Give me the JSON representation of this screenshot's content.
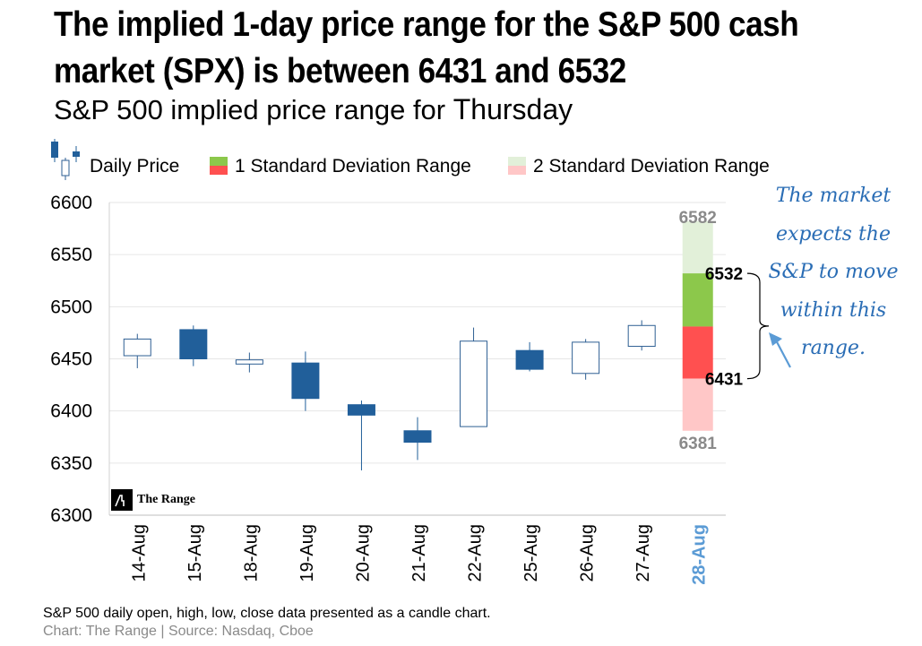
{
  "headline": "The implied 1-day price range for the S&P 500 cash market (SPX) is between 6431 and 6532",
  "subtitle": {
    "prefix": "S&P 500 implied price range for",
    "day": "Thursday"
  },
  "annotation": "The market expects the S&P to move within this range.",
  "logo": {
    "text": "The Range"
  },
  "footnote": "S&P 500 daily open, high, low, close data presented as a candle chart.",
  "source": "Chart: The Range | Source: Nasdaq, Cboe",
  "colors": {
    "up_candle_fill": "#ffffff",
    "up_candle_stroke": "#2e5f93",
    "down_candle": "#215f9a",
    "sd1_upper": "#8cc84b",
    "sd1_lower": "#ff5050",
    "sd2_upper": "#e2f0d9",
    "sd2_lower": "#ffc7c7",
    "highlight_date": "#5b9bd5",
    "range_label_gray": "#8a8a8a"
  },
  "chart_data": {
    "type": "candlestick",
    "title": "S&P 500 implied price range for Thursday",
    "ylim": [
      6300,
      6600
    ],
    "yticks": [
      6300,
      6350,
      6400,
      6450,
      6500,
      6550,
      6600
    ],
    "grid": true,
    "legend": {
      "position": "top",
      "entries": [
        "Daily Price",
        "1 Standard Deviation Range",
        "2 Standard Deviation Range"
      ]
    },
    "candles": [
      {
        "date": "14-Aug",
        "open": 6453,
        "high": 6474,
        "low": 6441,
        "close": 6469
      },
      {
        "date": "15-Aug",
        "open": 6478,
        "high": 6482,
        "low": 6443,
        "close": 6450
      },
      {
        "date": "18-Aug",
        "open": 6445,
        "high": 6456,
        "low": 6437,
        "close": 6449
      },
      {
        "date": "19-Aug",
        "open": 6446,
        "high": 6457,
        "low": 6400,
        "close": 6412
      },
      {
        "date": "20-Aug",
        "open": 6406,
        "high": 6410,
        "low": 6343,
        "close": 6396
      },
      {
        "date": "21-Aug",
        "open": 6381,
        "high": 6394,
        "low": 6353,
        "close": 6370
      },
      {
        "date": "22-Aug",
        "open": 6385,
        "high": 6480,
        "low": 6385,
        "close": 6467
      },
      {
        "date": "25-Aug",
        "open": 6458,
        "high": 6466,
        "low": 6438,
        "close": 6440
      },
      {
        "date": "26-Aug",
        "open": 6436,
        "high": 6469,
        "low": 6430,
        "close": 6466
      },
      {
        "date": "27-Aug",
        "open": 6462,
        "high": 6487,
        "low": 6458,
        "close": 6482
      }
    ],
    "forecast": {
      "date": "28-Aug",
      "center": 6481,
      "sd1": [
        6431,
        6532
      ],
      "sd2": [
        6381,
        6582
      ],
      "labels": {
        "sd2_high": "6582",
        "sd1_high": "6532",
        "sd1_low": "6431",
        "sd2_low": "6381"
      }
    }
  }
}
